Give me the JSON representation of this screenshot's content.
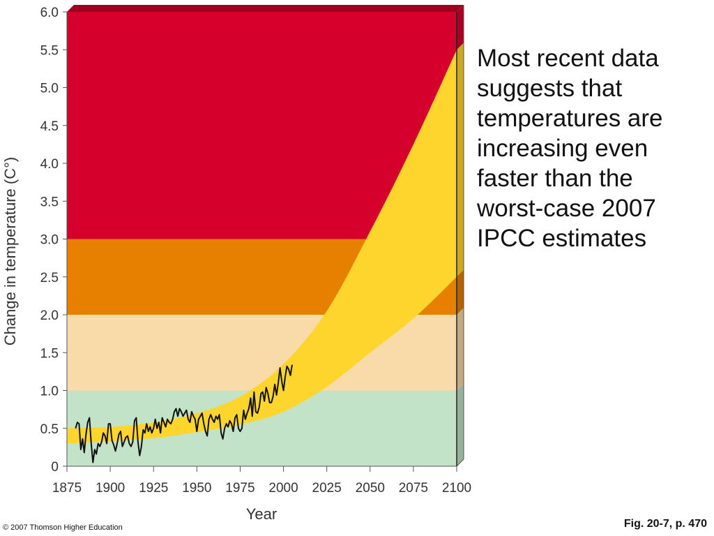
{
  "chart_data": {
    "type": "area",
    "title": "",
    "xlabel": "Year",
    "ylabel": "Change in temperature (C°)",
    "xlim": [
      1875,
      2100
    ],
    "ylim": [
      0,
      6.0
    ],
    "x_ticks": [
      "1875",
      "1900",
      "1925",
      "1950",
      "1975",
      "2000",
      "2025",
      "2050",
      "2075",
      "2100"
    ],
    "y_ticks": [
      "0",
      "0.5",
      "1.0",
      "1.5",
      "2.0",
      "2.5",
      "3.0",
      "3.5",
      "4.0",
      "4.5",
      "5.0",
      "5.5",
      "6.0"
    ],
    "bands": [
      {
        "from": 0,
        "to": 1.0,
        "color": "#c3e3c8"
      },
      {
        "from": 1.0,
        "to": 2.0,
        "color": "#f8dba8"
      },
      {
        "from": 2.0,
        "to": 3.0,
        "color": "#e77f00"
      },
      {
        "from": 3.0,
        "to": 6.0,
        "color": "#d5002b"
      }
    ],
    "projection_band": {
      "color": "#fdd52d",
      "x": [
        1875,
        1900,
        1925,
        1950,
        1975,
        2000,
        2025,
        2050,
        2075,
        2100
      ],
      "upper": [
        0.5,
        0.52,
        0.58,
        0.7,
        0.92,
        1.35,
        2.05,
        3.1,
        4.25,
        5.5
      ],
      "lower": [
        0.3,
        0.33,
        0.37,
        0.45,
        0.55,
        0.72,
        1.05,
        1.5,
        1.95,
        2.5
      ]
    },
    "series": [
      {
        "color": "#111111",
        "x": [
          1880,
          1881,
          1882,
          1883,
          1884,
          1885,
          1886,
          1887,
          1888,
          1889,
          1890,
          1891,
          1892,
          1893,
          1894,
          1895,
          1896,
          1897,
          1898,
          1899,
          1900,
          1901,
          1902,
          1903,
          1904,
          1905,
          1906,
          1907,
          1908,
          1909,
          1910,
          1911,
          1912,
          1913,
          1914,
          1915,
          1916,
          1917,
          1918,
          1919,
          1920,
          1921,
          1922,
          1923,
          1924,
          1925,
          1926,
          1927,
          1928,
          1929,
          1930,
          1931,
          1932,
          1933,
          1934,
          1935,
          1936,
          1937,
          1938,
          1939,
          1940,
          1941,
          1942,
          1943,
          1944,
          1945,
          1946,
          1947,
          1948,
          1949,
          1950,
          1951,
          1952,
          1953,
          1954,
          1955,
          1956,
          1957,
          1958,
          1959,
          1960,
          1961,
          1962,
          1963,
          1964,
          1965,
          1966,
          1967,
          1968,
          1969,
          1970,
          1971,
          1972,
          1973,
          1974,
          1975,
          1976,
          1977,
          1978,
          1979,
          1980,
          1981,
          1982,
          1983,
          1984,
          1985,
          1986,
          1987,
          1988,
          1989,
          1990,
          1991,
          1992,
          1993,
          1994,
          1995,
          1996,
          1997,
          1998,
          1999,
          2000,
          2001,
          2002,
          2003,
          2004,
          2005
        ],
        "y": [
          0.5,
          0.58,
          0.56,
          0.22,
          0.36,
          0.18,
          0.42,
          0.58,
          0.64,
          0.3,
          0.05,
          0.22,
          0.16,
          0.3,
          0.26,
          0.32,
          0.44,
          0.4,
          0.3,
          0.56,
          0.56,
          0.34,
          0.28,
          0.2,
          0.3,
          0.42,
          0.46,
          0.26,
          0.32,
          0.38,
          0.4,
          0.3,
          0.26,
          0.32,
          0.6,
          0.64,
          0.32,
          0.14,
          0.26,
          0.48,
          0.44,
          0.56,
          0.46,
          0.52,
          0.44,
          0.5,
          0.62,
          0.5,
          0.58,
          0.44,
          0.64,
          0.58,
          0.52,
          0.62,
          0.58,
          0.56,
          0.62,
          0.72,
          0.76,
          0.66,
          0.76,
          0.72,
          0.66,
          0.7,
          0.74,
          0.62,
          0.58,
          0.72,
          0.66,
          0.62,
          0.46,
          0.62,
          0.66,
          0.7,
          0.56,
          0.46,
          0.4,
          0.62,
          0.68,
          0.62,
          0.58,
          0.66,
          0.62,
          0.68,
          0.44,
          0.36,
          0.5,
          0.56,
          0.52,
          0.6,
          0.56,
          0.46,
          0.64,
          0.68,
          0.5,
          0.46,
          0.5,
          0.74,
          0.62,
          0.7,
          0.76,
          0.9,
          0.66,
          0.98,
          0.72,
          0.7,
          0.78,
          0.96,
          0.98,
          0.86,
          1.04,
          0.96,
          0.84,
          0.84,
          0.92,
          1.08,
          0.94,
          1.1,
          1.3,
          1.12,
          1.0,
          1.18,
          1.32,
          1.28,
          1.2,
          1.34
        ]
      }
    ]
  },
  "annotation": {
    "lines": [
      "Most recent data",
      "suggests that",
      "temperatures are",
      "increasing even",
      "faster than the",
      "worst-case 2007",
      "IPCC estimates"
    ]
  },
  "footer": {
    "copyright": "© 2007 Thomson Higher Education",
    "figure_ref": "Fig. 20-7, p. 470"
  }
}
